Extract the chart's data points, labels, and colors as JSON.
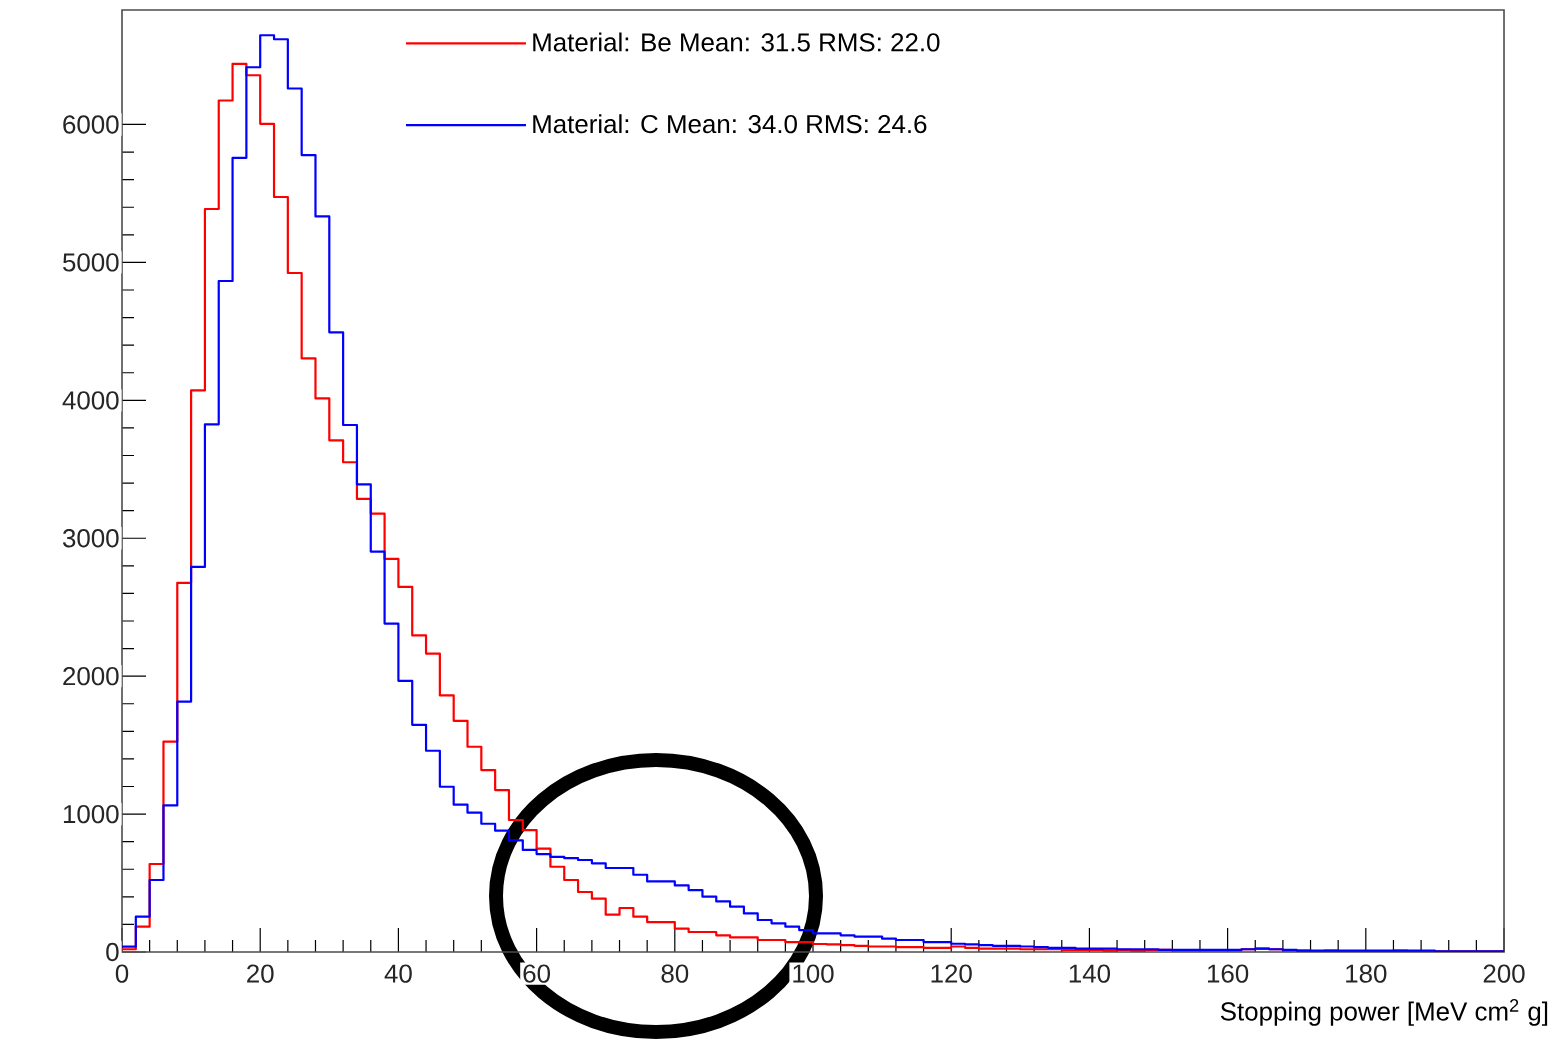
{
  "chart_data": {
    "type": "histogram",
    "xlabel": "Stopping power [MeV cm$^{2}$ g]",
    "bins": [
      0,
      2,
      4,
      6,
      8,
      10,
      12,
      14,
      16,
      18,
      20,
      22,
      24,
      26,
      28,
      30,
      32,
      34,
      36,
      38,
      40,
      42,
      44,
      46,
      48,
      50,
      52,
      54,
      56,
      58,
      60,
      62,
      64,
      66,
      68,
      70,
      72,
      74,
      76,
      78,
      80,
      82,
      84,
      86,
      88,
      90,
      92,
      94,
      96,
      98,
      100,
      102,
      104,
      106,
      108,
      110,
      112,
      114,
      116,
      118,
      120,
      122,
      124,
      126,
      128,
      130,
      132,
      134,
      136,
      138,
      140,
      142,
      144,
      146,
      148,
      150,
      152,
      154,
      156,
      158,
      160,
      162,
      164,
      166,
      168,
      170,
      172,
      174,
      176,
      178,
      180,
      182,
      184,
      186,
      188,
      190,
      192,
      194,
      196,
      198,
      200
    ],
    "series": [
      {
        "name": "Material: Be Mean: 31.5 RMS: 22.0",
        "color": "#ff0000",
        "values": [
          20,
          184,
          638,
          1526,
          2677,
          4072,
          5387,
          6174,
          6440,
          6357,
          6005,
          5474,
          4923,
          4304,
          4014,
          3710,
          3551,
          3285,
          3179,
          2850,
          2647,
          2295,
          2164,
          1860,
          1676,
          1488,
          1319,
          1174,
          957,
          884,
          749,
          618,
          522,
          435,
          387,
          271,
          319,
          256,
          217,
          217,
          169,
          145,
          145,
          121,
          106,
          106,
          87,
          87,
          72,
          72,
          58,
          55,
          50,
          45,
          40,
          40,
          35,
          35,
          30,
          30,
          40,
          30,
          25,
          25,
          25,
          20,
          20,
          20,
          15,
          15,
          15,
          10,
          15,
          10,
          15,
          15,
          10,
          10,
          10,
          10,
          10,
          20,
          25,
          20,
          10,
          10,
          5,
          10,
          5,
          5,
          5,
          5,
          10,
          5,
          5,
          5,
          5,
          5,
          5,
          5
        ]
      },
      {
        "name": "Material: C Mean: 34.0 RMS: 24.6",
        "color": "#0000ff",
        "values": [
          39,
          256,
          522,
          1063,
          1816,
          2792,
          3826,
          4865,
          5758,
          6415,
          6647,
          6618,
          6261,
          5778,
          5333,
          4493,
          3821,
          3391,
          2903,
          2381,
          1966,
          1647,
          1459,
          1198,
          1068,
          1010,
          930,
          880,
          810,
          740,
          710,
          690,
          680,
          667,
          643,
          609,
          609,
          560,
          512,
          512,
          483,
          449,
          401,
          367,
          329,
          280,
          232,
          208,
          184,
          159,
          135,
          135,
          121,
          112,
          112,
          97,
          87,
          87,
          72,
          72,
          60,
          55,
          50,
          45,
          45,
          40,
          35,
          30,
          30,
          25,
          25,
          25,
          20,
          20,
          20,
          15,
          15,
          15,
          15,
          15,
          15,
          20,
          25,
          20,
          15,
          10,
          10,
          10,
          10,
          10,
          10,
          10,
          10,
          10,
          10,
          5,
          5,
          5,
          5,
          5
        ]
      }
    ],
    "xlim": [
      0,
      200
    ],
    "ylim": [
      0,
      6830
    ],
    "xticks": [
      0,
      20,
      40,
      60,
      80,
      100,
      120,
      140,
      160,
      180,
      200
    ],
    "yticks": [
      0,
      1000,
      2000,
      3000,
      4000,
      5000,
      6000
    ],
    "grid": false,
    "legend": "top",
    "marker": "none",
    "line_style": "solid"
  }
}
